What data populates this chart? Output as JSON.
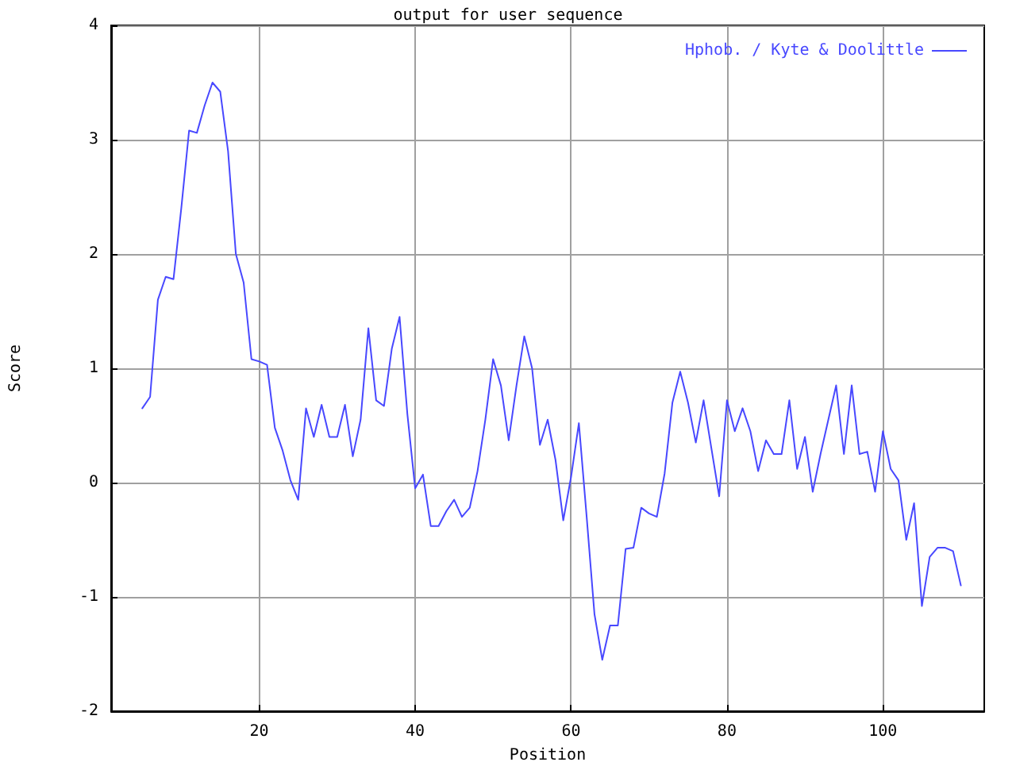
{
  "chart_data": {
    "type": "line",
    "title": "output for user sequence",
    "xlabel": "Position",
    "ylabel": "Score",
    "x": [
      5,
      6,
      7,
      8,
      9,
      10,
      11,
      12,
      13,
      14,
      15,
      16,
      17,
      18,
      19,
      20,
      21,
      22,
      23,
      24,
      25,
      26,
      27,
      28,
      29,
      30,
      31,
      32,
      33,
      34,
      35,
      36,
      37,
      38,
      39,
      40,
      41,
      42,
      43,
      44,
      45,
      46,
      47,
      48,
      49,
      50,
      51,
      52,
      53,
      54,
      55,
      56,
      57,
      58,
      59,
      60,
      61,
      62,
      63,
      64,
      65,
      66,
      67,
      68,
      69,
      70,
      71,
      72,
      73,
      74,
      75,
      76,
      77,
      78,
      79,
      80,
      81,
      82,
      83,
      84,
      85,
      86,
      87,
      88,
      89,
      90,
      91,
      92,
      93,
      94,
      95,
      96,
      97,
      98,
      99,
      100,
      101,
      102,
      103,
      104,
      105,
      106,
      107,
      108,
      109,
      110
    ],
    "series": [
      {
        "name": "Hphob. / Kyte & Doolittle",
        "color": "#4848ff",
        "values": [
          0.65,
          0.75,
          1.6,
          1.8,
          1.78,
          2.4,
          3.08,
          3.06,
          3.3,
          3.5,
          3.42,
          2.9,
          2.0,
          1.75,
          1.08,
          1.06,
          1.03,
          0.48,
          0.28,
          0.02,
          -0.15,
          0.65,
          0.4,
          0.68,
          0.4,
          0.4,
          0.68,
          0.23,
          0.55,
          1.35,
          0.72,
          0.67,
          1.17,
          1.45,
          0.6,
          -0.05,
          0.07,
          -0.38,
          -0.38,
          -0.25,
          -0.15,
          -0.3,
          -0.22,
          0.1,
          0.55,
          1.08,
          0.85,
          0.37,
          0.85,
          1.28,
          1.0,
          0.33,
          0.55,
          0.2,
          -0.33,
          0.05,
          0.52,
          -0.3,
          -1.15,
          -1.55,
          -1.25,
          -1.25,
          -0.58,
          -0.57,
          -0.22,
          -0.27,
          -0.3,
          0.08,
          0.7,
          0.97,
          0.7,
          0.35,
          0.72,
          0.3,
          -0.12,
          0.72,
          0.45,
          0.65,
          0.45,
          0.1,
          0.37,
          0.25,
          0.25,
          0.72,
          0.12,
          0.4,
          -0.08,
          0.25,
          0.55,
          0.85,
          0.25,
          0.85,
          0.25,
          0.27,
          -0.08,
          0.45,
          0.12,
          0.02,
          -0.5,
          -0.18,
          -1.08,
          -0.65,
          -0.57,
          -0.57,
          -0.6,
          -0.9
        ]
      }
    ],
    "xlim": [
      1,
      113
    ],
    "xticks": [
      20,
      40,
      60,
      80,
      100
    ],
    "ylim": [
      -2,
      4
    ],
    "yticks": [
      -2,
      -1,
      0,
      1,
      2,
      3,
      4
    ],
    "grid": true,
    "legend": "top right",
    "marker": "none",
    "line_style": "solid"
  }
}
